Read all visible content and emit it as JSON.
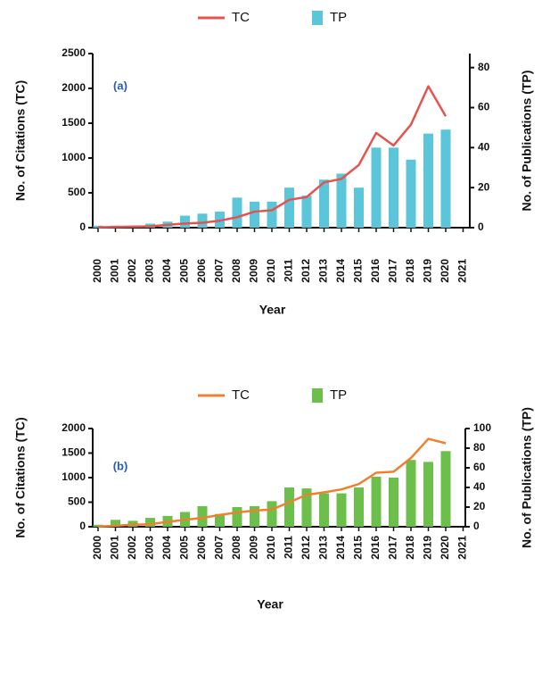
{
  "chart_data": [
    {
      "type": "combo",
      "annotation": "(a)",
      "xlabel": "Year",
      "ylabel": "No. of Citations (TC)",
      "y2label": "No. of Publications (TP)",
      "categories": [
        "2000",
        "2001",
        "2002",
        "2003",
        "2004",
        "2005",
        "2006",
        "2007",
        "2008",
        "2009",
        "2010",
        "2011",
        "2012",
        "2013",
        "2014",
        "2015",
        "2016",
        "2017",
        "2018",
        "2019",
        "2020",
        "2021"
      ],
      "ylim": [
        0,
        2500
      ],
      "yticks": [
        0,
        500,
        1000,
        1500,
        2000,
        2500
      ],
      "y2lim": [
        0,
        87
      ],
      "y2ticks": [
        0,
        20,
        40,
        60,
        80
      ],
      "series": [
        {
          "name": "TC",
          "type": "line",
          "color": "#e5534f",
          "values": [
            5,
            10,
            15,
            20,
            40,
            60,
            70,
            100,
            150,
            230,
            250,
            400,
            440,
            650,
            700,
            900,
            1360,
            1180,
            1480,
            2030,
            1600,
            null
          ]
        },
        {
          "name": "TP",
          "type": "bar",
          "axis": "y2",
          "color": "#5bc6d9",
          "values": [
            1,
            1,
            1,
            2,
            3,
            6,
            7,
            8,
            15,
            13,
            13,
            20,
            16,
            24,
            27,
            20,
            40,
            40,
            34,
            47,
            49,
            null
          ]
        }
      ]
    },
    {
      "type": "combo",
      "annotation": "(b)",
      "xlabel": "Year",
      "ylabel": "No. of Citations (TC)",
      "y2label": "No. of Publications (TP)",
      "categories": [
        "2000",
        "2001",
        "2002",
        "2003",
        "2004",
        "2005",
        "2006",
        "2007",
        "2008",
        "2009",
        "2010",
        "2011",
        "2012",
        "2013",
        "2014",
        "2015",
        "2016",
        "2017",
        "2018",
        "2019",
        "2020",
        "2021"
      ],
      "ylim": [
        0,
        2000
      ],
      "yticks": [
        0,
        500,
        1000,
        1500,
        2000
      ],
      "y2lim": [
        0,
        100
      ],
      "y2ticks": [
        0,
        20,
        40,
        60,
        80,
        100
      ],
      "series": [
        {
          "name": "TC",
          "type": "line",
          "color": "#f08030",
          "values": [
            5,
            20,
            40,
            50,
            100,
            140,
            180,
            240,
            290,
            330,
            350,
            500,
            650,
            700,
            760,
            870,
            1100,
            1120,
            1400,
            1790,
            1700,
            null
          ]
        },
        {
          "name": "TP",
          "type": "bar",
          "axis": "y2",
          "color": "#6cbf4a",
          "values": [
            2,
            7,
            6,
            9,
            11,
            15,
            21,
            13,
            20,
            21,
            26,
            40,
            39,
            34,
            34,
            40,
            51,
            50,
            68,
            66,
            77,
            null
          ]
        }
      ]
    }
  ]
}
